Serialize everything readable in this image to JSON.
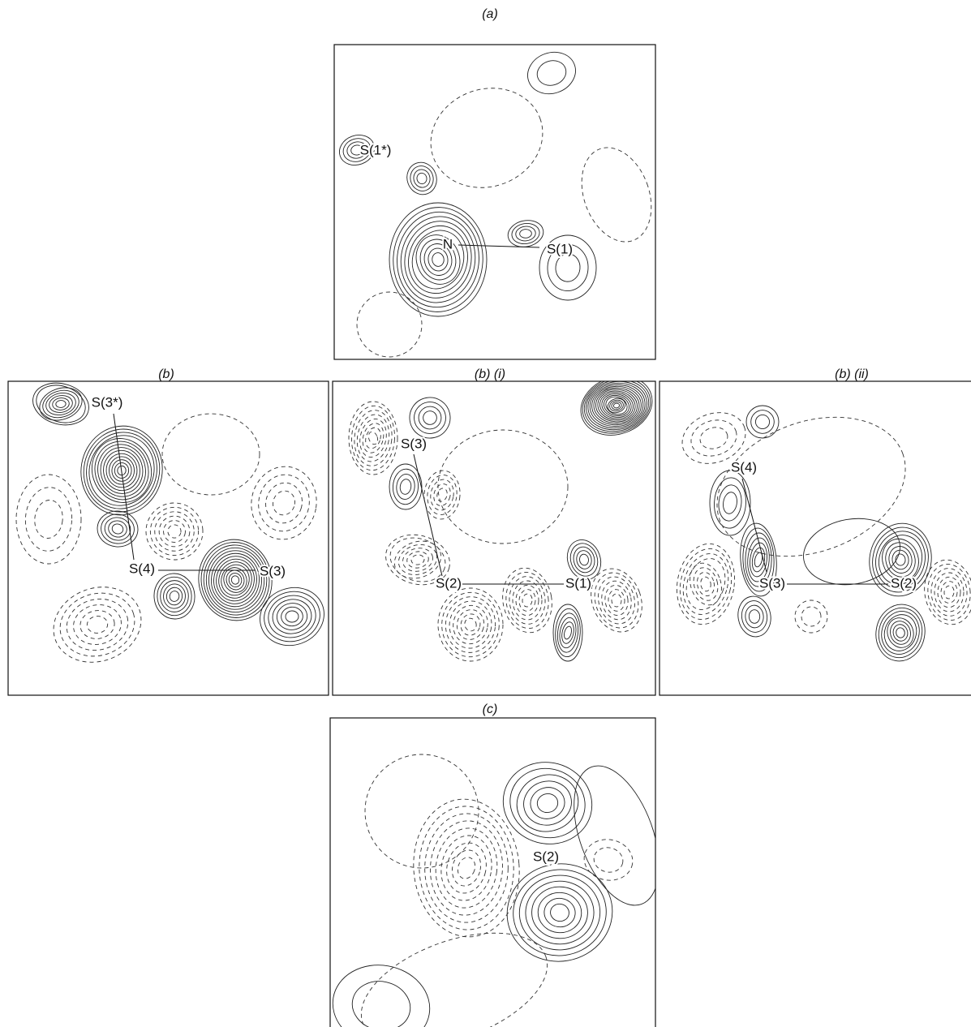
{
  "panels": [
    {
      "title": "(a)",
      "labels": [
        "S(1*)",
        "N",
        "S(1)"
      ]
    },
    {
      "title": "(b)",
      "labels": [
        "S(3*)",
        "S(4)",
        "S(3)"
      ]
    },
    {
      "title": "(b) (i)",
      "labels": [
        "S(3)",
        "S(2)",
        "S(1)"
      ]
    },
    {
      "title": "(b) (ii)",
      "labels": [
        "S(4)",
        "S(3)",
        "S(2)"
      ]
    },
    {
      "title": "(c)",
      "labels": [
        "S(2)"
      ]
    }
  ]
}
